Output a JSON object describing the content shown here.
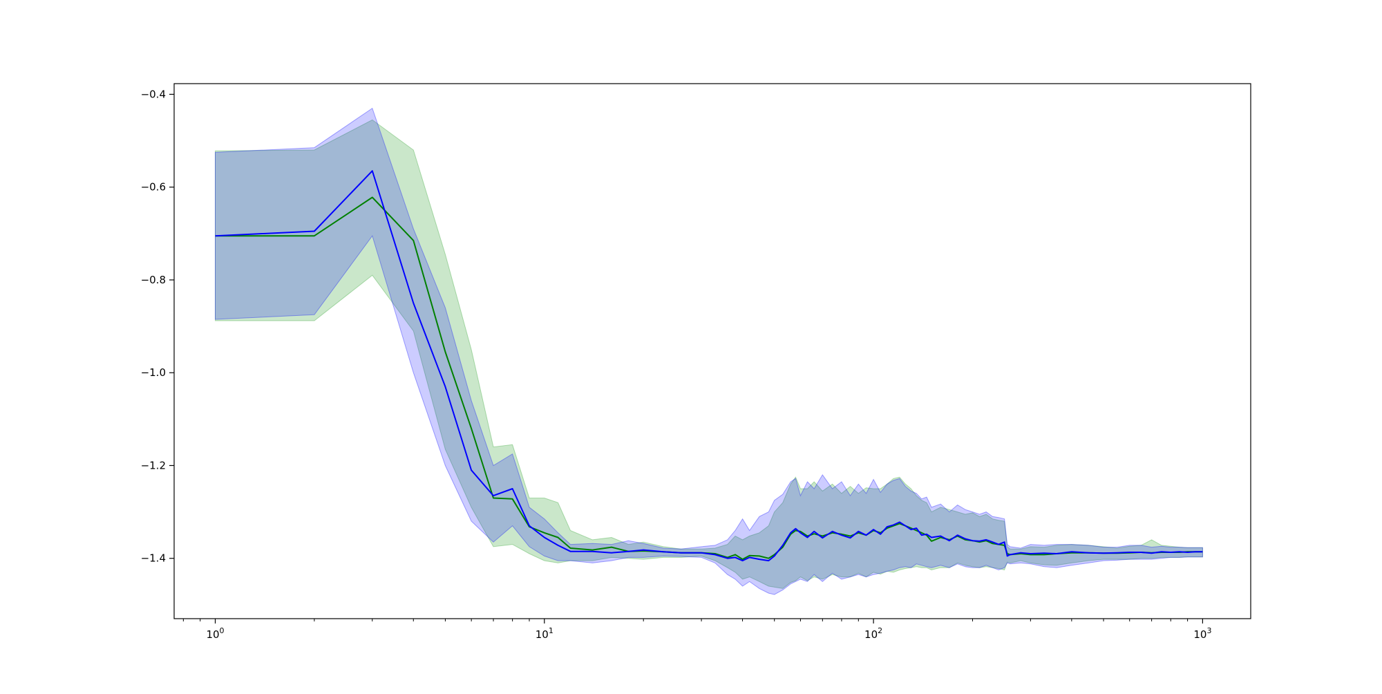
{
  "chart_data": {
    "type": "line",
    "title": "",
    "xlabel": "",
    "ylabel": "",
    "xscale": "log",
    "xlim": [
      0.75,
      1400
    ],
    "ylim": [
      -1.53,
      -0.377
    ],
    "grid": false,
    "x_ticks": [
      {
        "value": 1,
        "base": "10",
        "exp": "0"
      },
      {
        "value": 10,
        "base": "10",
        "exp": "1"
      },
      {
        "value": 100,
        "base": "10",
        "exp": "2"
      },
      {
        "value": 1000,
        "base": "10",
        "exp": "3"
      }
    ],
    "y_ticks": [
      {
        "value": -0.4,
        "label": "−0.4"
      },
      {
        "value": -0.6,
        "label": "−0.6"
      },
      {
        "value": -0.8,
        "label": "−0.8"
      },
      {
        "value": -1.0,
        "label": "−1.0"
      },
      {
        "value": -1.2,
        "label": "−1.2"
      },
      {
        "value": -1.4,
        "label": "−1.4"
      }
    ],
    "series": [
      {
        "color": "#008000",
        "band_color": "#2ca02c",
        "band_opacity": 0.25,
        "x": [
          1,
          2,
          3,
          4,
          5,
          6,
          7,
          8,
          9,
          10,
          11,
          12,
          14,
          16,
          18,
          20,
          23,
          26,
          30,
          33,
          36,
          38,
          40,
          42,
          45,
          48,
          50,
          53,
          56,
          58,
          60,
          63,
          66,
          70,
          75,
          80,
          85,
          90,
          95,
          100,
          105,
          110,
          115,
          120,
          125,
          130,
          135,
          140,
          145,
          150,
          160,
          170,
          180,
          190,
          200,
          210,
          220,
          230,
          240,
          250,
          255,
          260,
          280,
          300,
          330,
          360,
          400,
          450,
          500,
          550,
          600,
          650,
          700,
          750,
          800,
          850,
          900,
          950,
          1000
        ],
        "mean": [
          -0.705,
          -0.705,
          -0.622,
          -0.715,
          -0.955,
          -1.12,
          -1.27,
          -1.272,
          -1.332,
          -1.345,
          -1.355,
          -1.378,
          -1.382,
          -1.376,
          -1.385,
          -1.384,
          -1.386,
          -1.388,
          -1.388,
          -1.39,
          -1.398,
          -1.392,
          -1.402,
          -1.394,
          -1.395,
          -1.4,
          -1.392,
          -1.376,
          -1.348,
          -1.34,
          -1.342,
          -1.352,
          -1.347,
          -1.352,
          -1.345,
          -1.348,
          -1.352,
          -1.345,
          -1.35,
          -1.34,
          -1.345,
          -1.335,
          -1.33,
          -1.325,
          -1.33,
          -1.335,
          -1.34,
          -1.345,
          -1.35,
          -1.363,
          -1.355,
          -1.36,
          -1.352,
          -1.36,
          -1.362,
          -1.365,
          -1.362,
          -1.368,
          -1.37,
          -1.372,
          -1.39,
          -1.392,
          -1.39,
          -1.392,
          -1.392,
          -1.39,
          -1.388,
          -1.388,
          -1.389,
          -1.389,
          -1.388,
          -1.387,
          -1.388,
          -1.387,
          -1.387,
          -1.387,
          -1.386,
          -1.386,
          -1.386
        ],
        "upper": [
          -0.522,
          -0.52,
          -0.455,
          -0.52,
          -0.745,
          -0.95,
          -1.16,
          -1.155,
          -1.27,
          -1.27,
          -1.28,
          -1.34,
          -1.36,
          -1.355,
          -1.37,
          -1.365,
          -1.375,
          -1.38,
          -1.38,
          -1.378,
          -1.37,
          -1.352,
          -1.36,
          -1.352,
          -1.345,
          -1.33,
          -1.3,
          -1.28,
          -1.24,
          -1.225,
          -1.25,
          -1.25,
          -1.235,
          -1.255,
          -1.24,
          -1.26,
          -1.245,
          -1.26,
          -1.248,
          -1.25,
          -1.25,
          -1.24,
          -1.228,
          -1.225,
          -1.24,
          -1.25,
          -1.265,
          -1.275,
          -1.28,
          -1.3,
          -1.29,
          -1.295,
          -1.3,
          -1.305,
          -1.302,
          -1.31,
          -1.305,
          -1.315,
          -1.318,
          -1.32,
          -1.375,
          -1.38,
          -1.38,
          -1.375,
          -1.376,
          -1.372,
          -1.37,
          -1.372,
          -1.375,
          -1.378,
          -1.374,
          -1.372,
          -1.36,
          -1.372,
          -1.374,
          -1.376,
          -1.377,
          -1.377,
          -1.377
        ],
        "lower": [
          -0.888,
          -0.888,
          -0.79,
          -0.91,
          -1.165,
          -1.29,
          -1.375,
          -1.37,
          -1.39,
          -1.405,
          -1.41,
          -1.405,
          -1.405,
          -1.398,
          -1.4,
          -1.402,
          -1.398,
          -1.398,
          -1.395,
          -1.405,
          -1.42,
          -1.43,
          -1.445,
          -1.44,
          -1.45,
          -1.46,
          -1.462,
          -1.465,
          -1.452,
          -1.448,
          -1.44,
          -1.448,
          -1.44,
          -1.445,
          -1.435,
          -1.44,
          -1.44,
          -1.432,
          -1.44,
          -1.43,
          -1.434,
          -1.428,
          -1.43,
          -1.425,
          -1.422,
          -1.42,
          -1.418,
          -1.42,
          -1.42,
          -1.425,
          -1.42,
          -1.42,
          -1.41,
          -1.415,
          -1.418,
          -1.42,
          -1.418,
          -1.42,
          -1.422,
          -1.425,
          -1.408,
          -1.41,
          -1.405,
          -1.41,
          -1.414,
          -1.415,
          -1.41,
          -1.405,
          -1.402,
          -1.402,
          -1.402,
          -1.4,
          -1.4,
          -1.398,
          -1.398,
          -1.398,
          -1.397,
          -1.397,
          -1.397
        ]
      },
      {
        "color": "#0000ff",
        "band_color": "#0000ff",
        "band_opacity": 0.2,
        "x": [
          1,
          2,
          3,
          4,
          5,
          6,
          7,
          8,
          9,
          10,
          11,
          12,
          14,
          16,
          18,
          20,
          23,
          26,
          30,
          33,
          36,
          38,
          40,
          42,
          45,
          48,
          50,
          53,
          56,
          58,
          60,
          63,
          66,
          70,
          75,
          80,
          85,
          90,
          95,
          100,
          105,
          110,
          115,
          120,
          125,
          130,
          135,
          140,
          145,
          150,
          160,
          170,
          180,
          190,
          200,
          210,
          220,
          230,
          240,
          250,
          255,
          260,
          280,
          300,
          330,
          360,
          400,
          450,
          500,
          550,
          600,
          650,
          700,
          750,
          800,
          850,
          900,
          950,
          1000
        ],
        "mean": [
          -0.705,
          -0.695,
          -0.565,
          -0.85,
          -1.03,
          -1.21,
          -1.265,
          -1.25,
          -1.33,
          -1.355,
          -1.372,
          -1.385,
          -1.385,
          -1.388,
          -1.385,
          -1.382,
          -1.386,
          -1.388,
          -1.388,
          -1.392,
          -1.4,
          -1.398,
          -1.405,
          -1.398,
          -1.402,
          -1.405,
          -1.395,
          -1.372,
          -1.345,
          -1.336,
          -1.345,
          -1.355,
          -1.342,
          -1.356,
          -1.342,
          -1.35,
          -1.356,
          -1.342,
          -1.35,
          -1.338,
          -1.348,
          -1.332,
          -1.328,
          -1.322,
          -1.33,
          -1.338,
          -1.335,
          -1.35,
          -1.348,
          -1.355,
          -1.352,
          -1.362,
          -1.35,
          -1.358,
          -1.362,
          -1.363,
          -1.36,
          -1.365,
          -1.37,
          -1.365,
          -1.395,
          -1.392,
          -1.388,
          -1.39,
          -1.389,
          -1.39,
          -1.386,
          -1.388,
          -1.389,
          -1.388,
          -1.387,
          -1.387,
          -1.389,
          -1.386,
          -1.387,
          -1.386,
          -1.387,
          -1.386,
          -1.386
        ],
        "upper": [
          -0.525,
          -0.515,
          -0.43,
          -0.69,
          -0.86,
          -1.06,
          -1.2,
          -1.175,
          -1.29,
          -1.315,
          -1.345,
          -1.37,
          -1.368,
          -1.37,
          -1.362,
          -1.368,
          -1.378,
          -1.38,
          -1.375,
          -1.372,
          -1.36,
          -1.34,
          -1.315,
          -1.34,
          -1.31,
          -1.3,
          -1.275,
          -1.262,
          -1.235,
          -1.228,
          -1.265,
          -1.235,
          -1.25,
          -1.22,
          -1.25,
          -1.235,
          -1.265,
          -1.24,
          -1.26,
          -1.23,
          -1.258,
          -1.24,
          -1.232,
          -1.228,
          -1.245,
          -1.255,
          -1.26,
          -1.272,
          -1.268,
          -1.29,
          -1.283,
          -1.3,
          -1.285,
          -1.295,
          -1.3,
          -1.305,
          -1.3,
          -1.31,
          -1.312,
          -1.315,
          -1.37,
          -1.375,
          -1.378,
          -1.37,
          -1.372,
          -1.37,
          -1.37,
          -1.372,
          -1.376,
          -1.376,
          -1.372,
          -1.372,
          -1.376,
          -1.374,
          -1.376,
          -1.376,
          -1.377,
          -1.377,
          -1.377
        ],
        "lower": [
          -0.885,
          -0.875,
          -0.705,
          -1.0,
          -1.2,
          -1.32,
          -1.365,
          -1.33,
          -1.375,
          -1.395,
          -1.405,
          -1.405,
          -1.41,
          -1.405,
          -1.398,
          -1.398,
          -1.395,
          -1.396,
          -1.398,
          -1.41,
          -1.435,
          -1.445,
          -1.46,
          -1.45,
          -1.465,
          -1.475,
          -1.478,
          -1.468,
          -1.455,
          -1.45,
          -1.445,
          -1.45,
          -1.435,
          -1.45,
          -1.432,
          -1.445,
          -1.44,
          -1.435,
          -1.44,
          -1.435,
          -1.432,
          -1.428,
          -1.425,
          -1.42,
          -1.418,
          -1.42,
          -1.412,
          -1.415,
          -1.418,
          -1.42,
          -1.415,
          -1.42,
          -1.412,
          -1.418,
          -1.42,
          -1.42,
          -1.415,
          -1.42,
          -1.425,
          -1.42,
          -1.41,
          -1.412,
          -1.41,
          -1.412,
          -1.418,
          -1.42,
          -1.415,
          -1.41,
          -1.405,
          -1.404,
          -1.402,
          -1.402,
          -1.402,
          -1.4,
          -1.398,
          -1.398,
          -1.397,
          -1.397,
          -1.397
        ]
      }
    ]
  }
}
